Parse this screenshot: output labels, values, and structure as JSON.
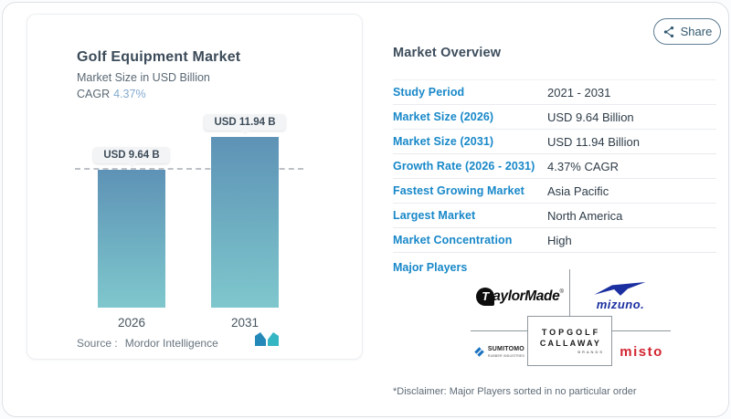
{
  "page": {
    "share_button": {
      "label": "Share"
    }
  },
  "chart_panel": {
    "title": "Golf Equipment Market",
    "subtitle": "Market Size in USD Billion",
    "cagr_label": "CAGR",
    "cagr_value": "4.37%",
    "source_label": "Source :",
    "source_value": "Mordor Intelligence"
  },
  "chart_data": {
    "type": "bar",
    "title": "Golf Equipment Market",
    "ylabel": "Market Size in USD Billion",
    "categories": [
      "2026",
      "2031"
    ],
    "values": [
      9.64,
      11.94
    ],
    "value_labels": [
      "USD 9.64 B",
      "USD 11.94 B"
    ],
    "cagr_percent": 4.37,
    "ylim": [
      0,
      13
    ],
    "reference_line": 9.64,
    "grid": false,
    "legend": "none",
    "bar_color_top": "#5e92b6",
    "bar_color_bottom": "#7fc7cd"
  },
  "overview": {
    "heading": "Market Overview",
    "rows": [
      {
        "label": "Study Period",
        "value": "2021 - 2031"
      },
      {
        "label": "Market Size (2026)",
        "value": "USD 9.64 Billion"
      },
      {
        "label": "Market Size (2031)",
        "value": "USD 11.94 Billion"
      },
      {
        "label": "Growth Rate (2026 - 2031)",
        "value": "4.37% CAGR"
      },
      {
        "label": "Fastest Growing Market",
        "value": "Asia Pacific"
      },
      {
        "label": "Largest Market",
        "value": "North America"
      },
      {
        "label": "Market Concentration",
        "value": "High"
      }
    ],
    "major_players_label": "Major Players",
    "players": {
      "taylormade": {
        "icon_letter": "T",
        "text": "aylorMade",
        "reg": "®",
        "name": "TaylorMade"
      },
      "mizuno": {
        "text": "mizuno.",
        "name": "Mizuno"
      },
      "sumitomo": {
        "line1": "SUMITOMO",
        "line2": "RUBBER INDUSTRIES",
        "name": "Sumitomo Rubber Industries"
      },
      "callaway": {
        "line1": "TOPGOLF",
        "line2": "CALLAWAY",
        "line3": "BRANDS",
        "name": "Topgolf Callaway Brands"
      },
      "misto": {
        "text": "misto",
        "name": "Misto"
      }
    },
    "disclaimer": "*Disclaimer: Major Players sorted in no particular order"
  },
  "colors": {
    "accent_blue": "#1888c9",
    "heading_text": "#3d4d5c",
    "value_text": "#2f3d49",
    "cagr_value_blue": "#84abce",
    "mizuno_blue": "#1b2fa0",
    "misto_red": "#d22630",
    "sumitomo_blue": "#1a72c0",
    "grid_line": "#8f979e"
  }
}
